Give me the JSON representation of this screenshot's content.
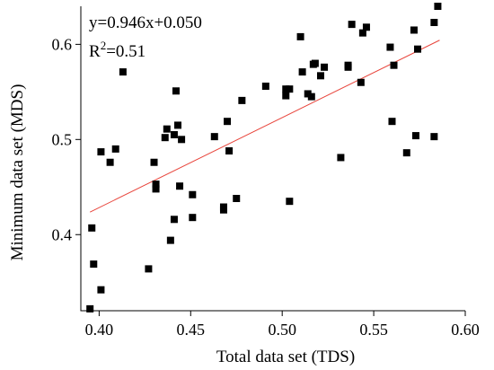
{
  "chart_data": {
    "type": "scatter",
    "xlabel": "Total data set (TDS)",
    "ylabel": "Minimum data set (MDS)",
    "xlim": [
      0.39,
      0.6
    ],
    "ylim": [
      0.32,
      0.64
    ],
    "xticks": [
      0.4,
      0.45,
      0.5,
      0.55,
      0.6
    ],
    "yticks": [
      0.4,
      0.5,
      0.6
    ],
    "xtick_labels": [
      "0.40",
      "0.45",
      "0.50",
      "0.55",
      "0.60"
    ],
    "ytick_labels": [
      "0.4",
      "0.5",
      "0.6"
    ],
    "equation": "y=0.946x+0.050",
    "r2_label": "R",
    "r2_sup": "2",
    "r2_value": "=0.51",
    "trendline": {
      "slope": 0.946,
      "intercept": 0.05,
      "x_range": [
        0.395,
        0.586
      ],
      "color": "#e8453c"
    },
    "points": [
      {
        "x": 0.395,
        "y": 0.322
      },
      {
        "x": 0.396,
        "y": 0.407
      },
      {
        "x": 0.397,
        "y": 0.369
      },
      {
        "x": 0.401,
        "y": 0.342
      },
      {
        "x": 0.401,
        "y": 0.487
      },
      {
        "x": 0.406,
        "y": 0.476
      },
      {
        "x": 0.409,
        "y": 0.49
      },
      {
        "x": 0.413,
        "y": 0.571
      },
      {
        "x": 0.427,
        "y": 0.364
      },
      {
        "x": 0.43,
        "y": 0.476
      },
      {
        "x": 0.431,
        "y": 0.453
      },
      {
        "x": 0.431,
        "y": 0.448
      },
      {
        "x": 0.436,
        "y": 0.502
      },
      {
        "x": 0.437,
        "y": 0.511
      },
      {
        "x": 0.439,
        "y": 0.394
      },
      {
        "x": 0.441,
        "y": 0.416
      },
      {
        "x": 0.441,
        "y": 0.505
      },
      {
        "x": 0.442,
        "y": 0.551
      },
      {
        "x": 0.443,
        "y": 0.515
      },
      {
        "x": 0.444,
        "y": 0.451
      },
      {
        "x": 0.445,
        "y": 0.5
      },
      {
        "x": 0.451,
        "y": 0.442
      },
      {
        "x": 0.451,
        "y": 0.418
      },
      {
        "x": 0.463,
        "y": 0.503
      },
      {
        "x": 0.468,
        "y": 0.426
      },
      {
        "x": 0.468,
        "y": 0.429
      },
      {
        "x": 0.47,
        "y": 0.519
      },
      {
        "x": 0.471,
        "y": 0.488
      },
      {
        "x": 0.475,
        "y": 0.438
      },
      {
        "x": 0.478,
        "y": 0.541
      },
      {
        "x": 0.491,
        "y": 0.556
      },
      {
        "x": 0.502,
        "y": 0.553
      },
      {
        "x": 0.502,
        "y": 0.546
      },
      {
        "x": 0.504,
        "y": 0.553
      },
      {
        "x": 0.504,
        "y": 0.435
      },
      {
        "x": 0.51,
        "y": 0.608
      },
      {
        "x": 0.511,
        "y": 0.571
      },
      {
        "x": 0.514,
        "y": 0.548
      },
      {
        "x": 0.516,
        "y": 0.545
      },
      {
        "x": 0.517,
        "y": 0.579
      },
      {
        "x": 0.518,
        "y": 0.58
      },
      {
        "x": 0.521,
        "y": 0.567
      },
      {
        "x": 0.523,
        "y": 0.576
      },
      {
        "x": 0.532,
        "y": 0.481
      },
      {
        "x": 0.536,
        "y": 0.578
      },
      {
        "x": 0.536,
        "y": 0.576
      },
      {
        "x": 0.538,
        "y": 0.621
      },
      {
        "x": 0.543,
        "y": 0.56
      },
      {
        "x": 0.544,
        "y": 0.612
      },
      {
        "x": 0.546,
        "y": 0.618
      },
      {
        "x": 0.559,
        "y": 0.597
      },
      {
        "x": 0.56,
        "y": 0.519
      },
      {
        "x": 0.561,
        "y": 0.578
      },
      {
        "x": 0.568,
        "y": 0.486
      },
      {
        "x": 0.572,
        "y": 0.615
      },
      {
        "x": 0.573,
        "y": 0.504
      },
      {
        "x": 0.574,
        "y": 0.595
      },
      {
        "x": 0.583,
        "y": 0.503
      },
      {
        "x": 0.583,
        "y": 0.623
      },
      {
        "x": 0.585,
        "y": 0.64
      }
    ]
  }
}
